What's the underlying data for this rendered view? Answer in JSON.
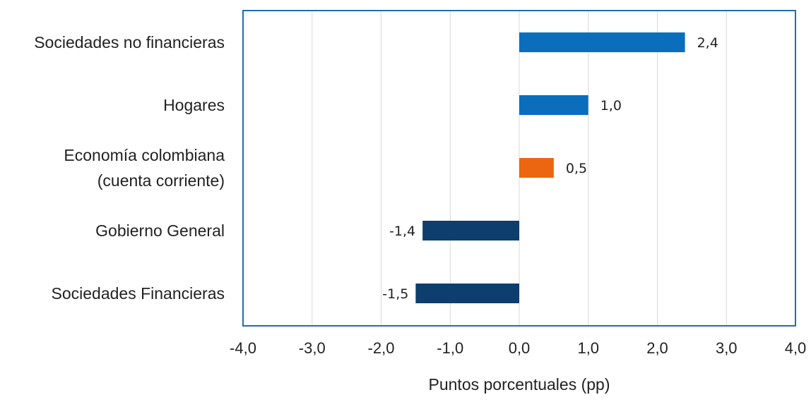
{
  "chart_data": {
    "type": "bar",
    "orientation": "horizontal",
    "categories": [
      [
        "Sociedades no financieras"
      ],
      [
        "Hogares"
      ],
      [
        "Economía colombiana",
        "(cuenta corriente)"
      ],
      [
        "Gobierno General"
      ],
      [
        "Sociedades Financieras"
      ]
    ],
    "values": [
      2.4,
      1.0,
      0.5,
      -1.4,
      -1.5
    ],
    "value_labels": [
      "2,4",
      "1,0",
      "0,5",
      "-1,4",
      "-1,5"
    ],
    "bar_colors": [
      "#0a6ebd",
      "#0a6ebd",
      "#ec6611",
      "#0e3e6e",
      "#0e3e6e"
    ],
    "xlim": [
      -4,
      4
    ],
    "xticks": [
      -4,
      -3,
      -2,
      -1,
      0,
      1,
      2,
      3,
      4
    ],
    "xtick_labels": [
      "-4,0",
      "-3,0",
      "-2,0",
      "-1,0",
      "0,0",
      "1,0",
      "2,0",
      "3,0",
      "4,0"
    ],
    "xlabel": "Puntos porcentuales (pp)",
    "ylabel": "",
    "title": "",
    "grid": "vertical",
    "frame_color": "#1f6fb2"
  }
}
